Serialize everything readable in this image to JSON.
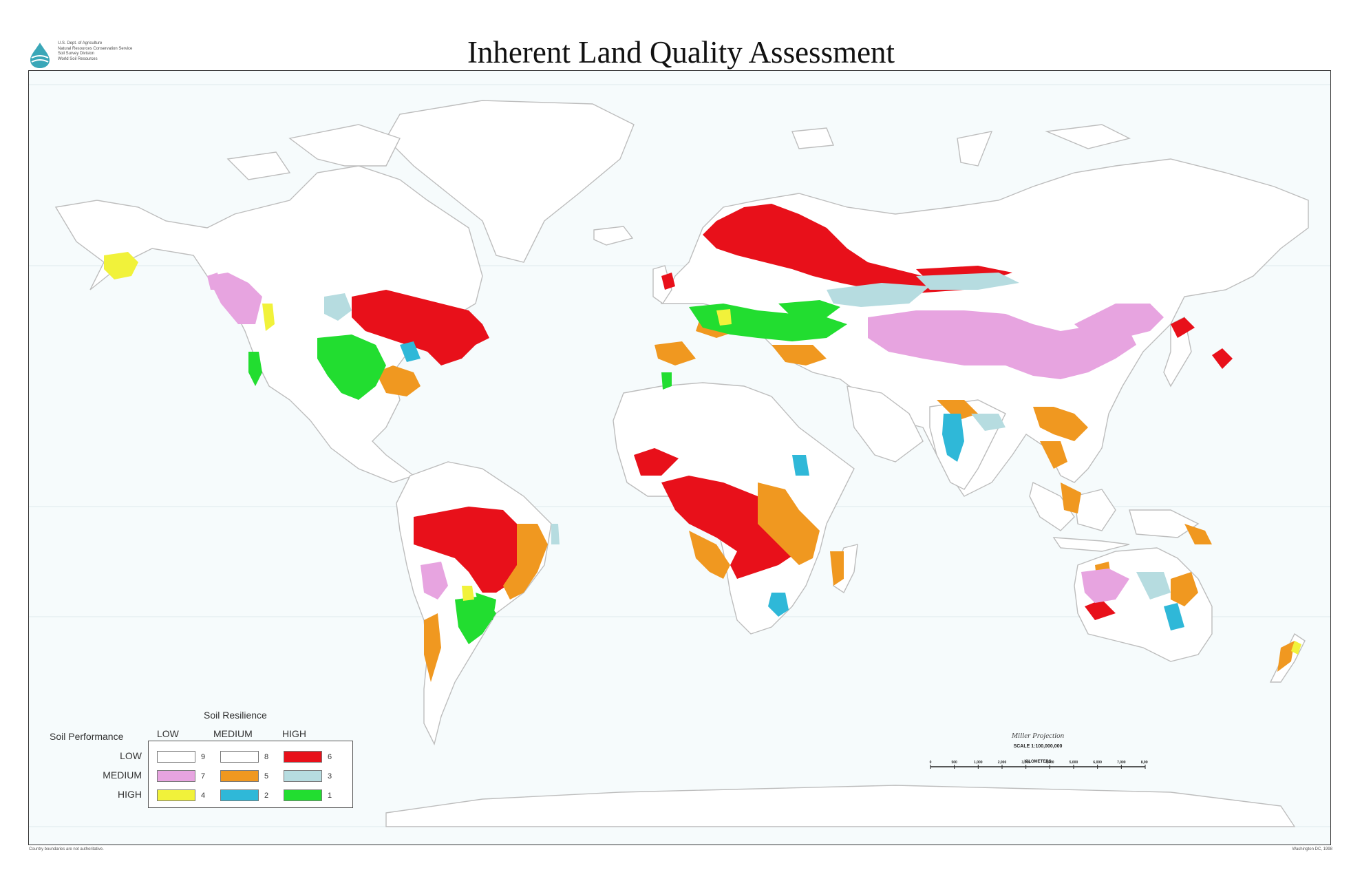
{
  "header": {
    "title": "Inherent Land Quality Assessment",
    "agency_lines": [
      "U.S. Dept. of Agriculture",
      "Natural Resources Conservation Service",
      "Soil Survey Division",
      "World Soil Resources"
    ]
  },
  "legend": {
    "title": "Soil Resilience",
    "row_heading": "Soil Performance",
    "columns": [
      "LOW",
      "MEDIUM",
      "HIGH"
    ],
    "rows": [
      "LOW",
      "MEDIUM",
      "HIGH"
    ],
    "cells": [
      [
        {
          "class": "9",
          "color": "#ffffff"
        },
        {
          "class": "8",
          "color": "#ffffff"
        },
        {
          "class": "6",
          "color": "#e8101a"
        }
      ],
      [
        {
          "class": "7",
          "color": "#e7a4e0"
        },
        {
          "class": "5",
          "color": "#f09820"
        },
        {
          "class": "3",
          "color": "#b6dce0"
        }
      ],
      [
        {
          "class": "4",
          "color": "#f1f23a"
        },
        {
          "class": "2",
          "color": "#2fb8d8"
        },
        {
          "class": "1",
          "color": "#22dd30"
        }
      ]
    ]
  },
  "scale": {
    "projection": "Miller Projection",
    "ratio": "SCALE 1:100,000,000",
    "ticks": [
      "0",
      "500",
      "1,000",
      "2,000",
      "3,000",
      "4,000",
      "5,000",
      "6,000",
      "7,000",
      "8,000"
    ],
    "units": "KILOMETERS"
  },
  "footer": {
    "left": "Country boundaries are not authoritative.",
    "right": "Washington DC, 1998"
  },
  "colors": {
    "class_6": "#e8101a",
    "class_5": "#f09820",
    "class_1": "#22dd30",
    "class_2": "#2fb8d8",
    "class_3": "#b6dce0",
    "class_4": "#f1f23a",
    "class_7": "#e7a4e0",
    "ocean": "#f6fbfc",
    "land_outline": "#bdbdbd"
  }
}
